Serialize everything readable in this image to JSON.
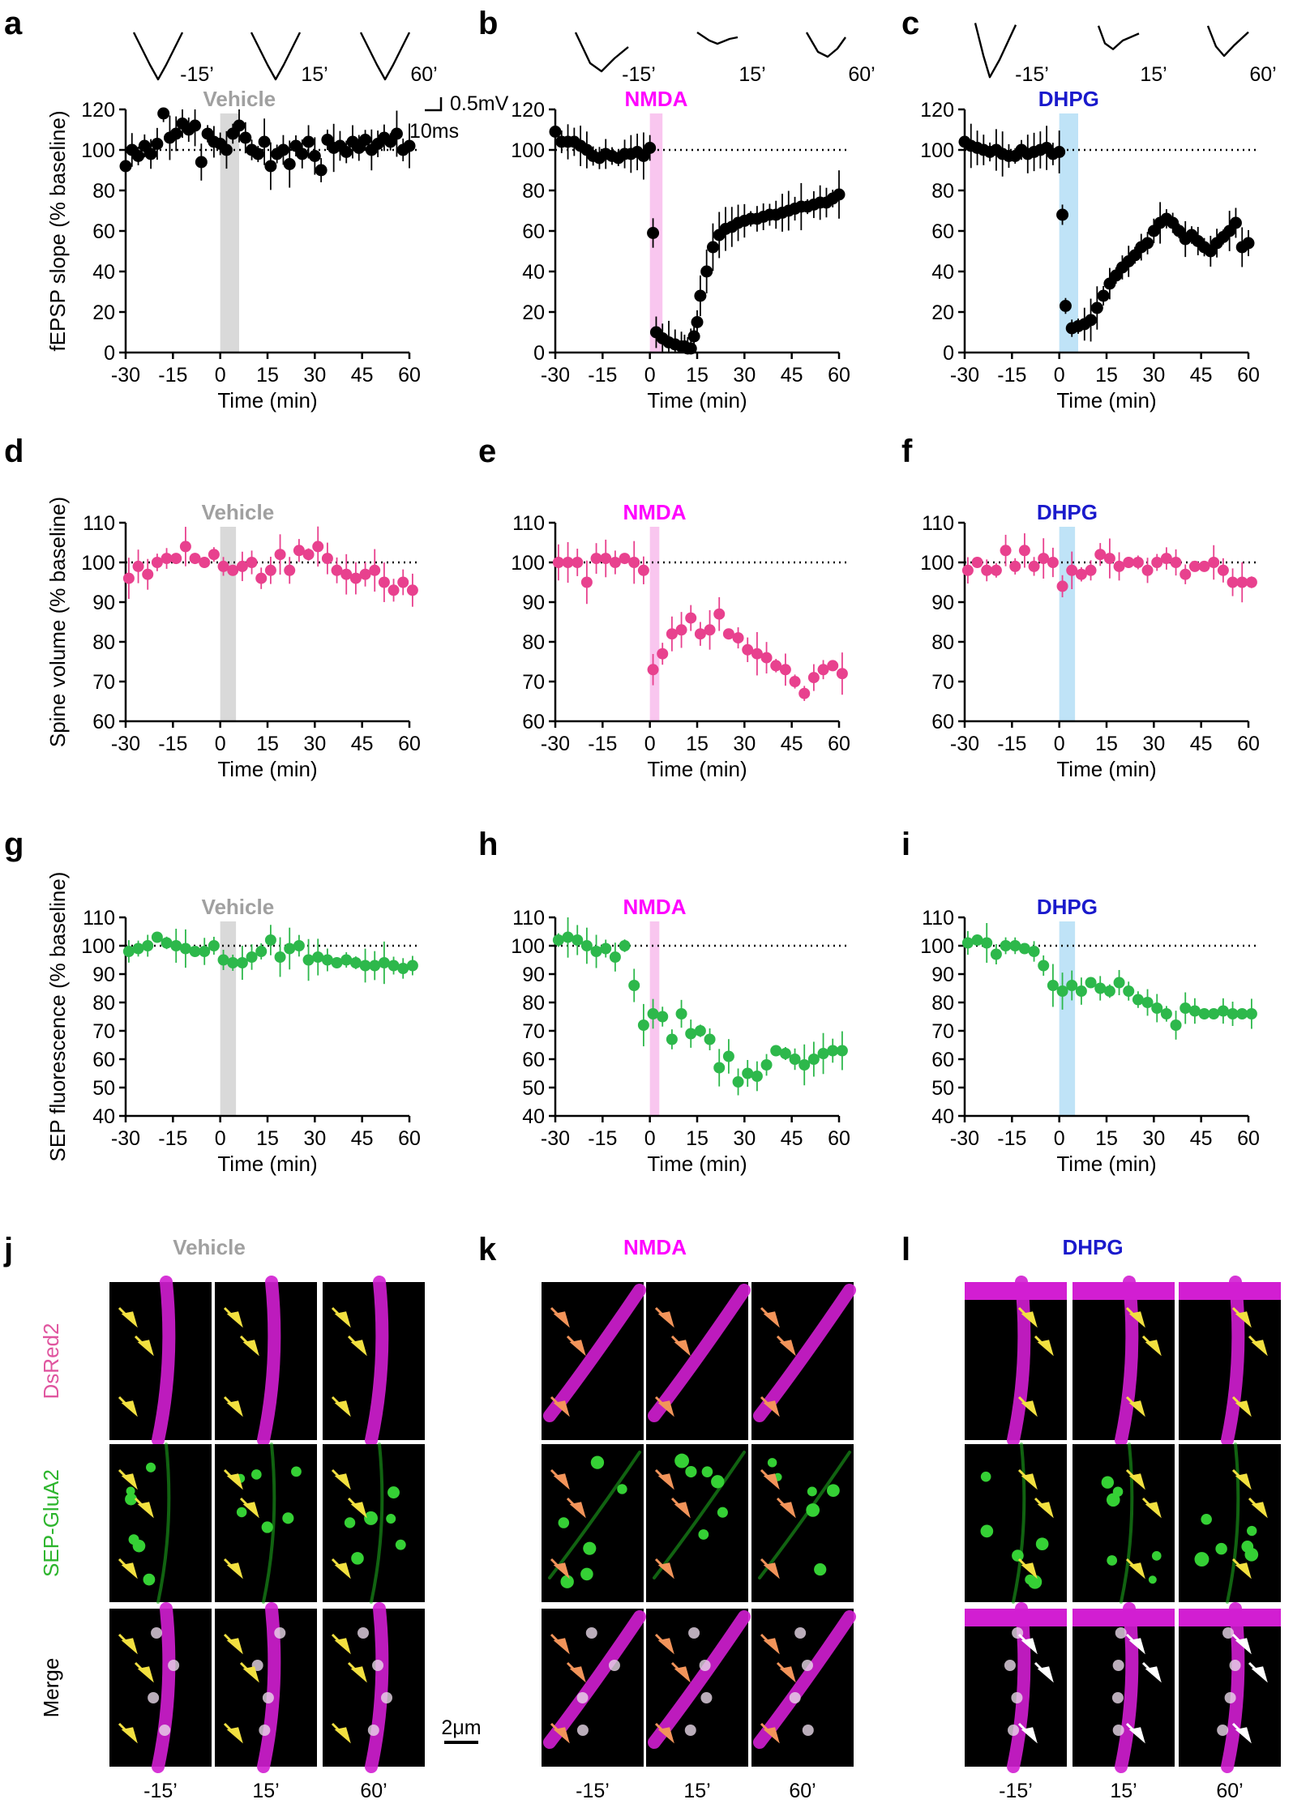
{
  "figure": {
    "panel_letters": [
      "a",
      "b",
      "c",
      "d",
      "e",
      "f",
      "g",
      "h",
      "i",
      "j",
      "k",
      "l"
    ],
    "trace_times": [
      "-15’",
      "15’",
      "60’"
    ],
    "scalebar": {
      "voltage": "0.5mV",
      "time": "10ms",
      "image": "2μm"
    },
    "x_tick_labels": [
      "-30",
      "-15",
      "0",
      "15",
      "30",
      "45",
      "60"
    ],
    "x_axis_label": "Time (min)",
    "y_label_fepsp": "fEPSP slope (% baseline)",
    "y_label_spine": "Spine volume (% baseline)",
    "y_label_sep": "SEP fluorescence (% baseline)",
    "treatments": [
      {
        "name": "Vehicle",
        "color": "#a0a0a0",
        "band": "#d9d9d9"
      },
      {
        "name": "NMDA",
        "color": "#ff00ff",
        "band": "#f9c6ef"
      },
      {
        "name": "DHPG",
        "color": "#1a1acc",
        "band": "#bfe3f7"
      }
    ],
    "image_rows": [
      {
        "label": "DsRed2",
        "color": "#e0559f"
      },
      {
        "label": "SEP-GluA2",
        "color": "#2db52d"
      },
      {
        "label": "Merge",
        "color": "#000000"
      }
    ],
    "image_times": [
      "-15’",
      "15’",
      "60’"
    ]
  },
  "chart_data": [
    {
      "panel": "a",
      "type": "scatter",
      "title": "Vehicle",
      "xlabel": "Time (min)",
      "ylabel": "fEPSP slope (% baseline)",
      "xlim": [
        -30,
        60
      ],
      "ylim": [
        0,
        120
      ],
      "yticks": [
        0,
        20,
        40,
        60,
        80,
        100,
        120
      ],
      "baseline": 100,
      "treatment_band": [
        0,
        6
      ],
      "x": [
        -30,
        -28,
        -26,
        -24,
        -22,
        -20,
        -18,
        -16,
        -14,
        -12,
        -10,
        -8,
        -6,
        -4,
        -2,
        0,
        2,
        4,
        6,
        8,
        10,
        12,
        14,
        16,
        18,
        20,
        22,
        24,
        26,
        28,
        30,
        32,
        34,
        36,
        38,
        40,
        42,
        44,
        46,
        48,
        50,
        52,
        54,
        56,
        58,
        60
      ],
      "y": [
        92,
        100,
        97,
        102,
        98,
        103,
        118,
        106,
        108,
        113,
        110,
        112,
        94,
        108,
        104,
        103,
        100,
        108,
        112,
        106,
        100,
        98,
        104,
        92,
        98,
        100,
        93,
        102,
        98,
        104,
        97,
        90,
        105,
        101,
        102,
        99,
        104,
        101,
        105,
        100,
        103,
        106,
        104,
        108,
        100,
        102
      ]
    },
    {
      "panel": "b",
      "type": "scatter",
      "title": "NMDA",
      "xlabel": "Time (min)",
      "ylabel": "",
      "xlim": [
        -30,
        60
      ],
      "ylim": [
        0,
        120
      ],
      "yticks": [
        0,
        20,
        40,
        60,
        80,
        100,
        120
      ],
      "baseline": 100,
      "treatment_band": [
        0,
        4
      ],
      "x": [
        -30,
        -28,
        -26,
        -24,
        -22,
        -20,
        -18,
        -16,
        -14,
        -12,
        -10,
        -8,
        -6,
        -4,
        -2,
        0,
        1,
        2,
        4,
        6,
        8,
        10,
        11,
        12,
        13,
        14,
        15,
        16,
        18,
        20,
        22,
        24,
        26,
        28,
        30,
        32,
        34,
        36,
        38,
        40,
        42,
        44,
        46,
        48,
        50,
        52,
        54,
        56,
        58,
        60
      ],
      "y": [
        109,
        104,
        104,
        104,
        102,
        100,
        97,
        96,
        98,
        97,
        96,
        98,
        98,
        99,
        97,
        101,
        59,
        10,
        7,
        5,
        4,
        3,
        3,
        2,
        2,
        8,
        15,
        28,
        40,
        52,
        58,
        61,
        62,
        64,
        65,
        66,
        66,
        67,
        68,
        68,
        69,
        70,
        71,
        72,
        72,
        73,
        74,
        74,
        76,
        78
      ]
    },
    {
      "panel": "c",
      "type": "scatter",
      "title": "DHPG",
      "xlabel": "Time (min)",
      "ylabel": "",
      "xlim": [
        -30,
        60
      ],
      "ylim": [
        0,
        120
      ],
      "yticks": [
        0,
        20,
        40,
        60,
        80,
        100,
        120
      ],
      "baseline": 100,
      "treatment_band": [
        0,
        6
      ],
      "x": [
        -30,
        -28,
        -26,
        -24,
        -22,
        -20,
        -18,
        -16,
        -14,
        -12,
        -10,
        -8,
        -6,
        -4,
        -2,
        0,
        1,
        2,
        4,
        6,
        8,
        10,
        12,
        14,
        16,
        18,
        20,
        22,
        24,
        26,
        28,
        30,
        32,
        34,
        36,
        38,
        40,
        42,
        44,
        46,
        48,
        50,
        52,
        54,
        56,
        58,
        60
      ],
      "y": [
        104,
        102,
        101,
        100,
        99,
        100,
        98,
        97,
        97,
        100,
        98,
        99,
        100,
        101,
        98,
        99,
        68,
        23,
        12,
        13,
        14,
        16,
        22,
        28,
        34,
        38,
        42,
        45,
        48,
        52,
        54,
        60,
        64,
        66,
        64,
        60,
        56,
        58,
        55,
        52,
        50,
        54,
        57,
        60,
        64,
        52,
        54
      ]
    },
    {
      "panel": "d",
      "type": "scatter",
      "title": "Vehicle",
      "xlabel": "Time (min)",
      "ylabel": "Spine volume (% baseline)",
      "xlim": [
        -30,
        60
      ],
      "ylim": [
        60,
        110
      ],
      "yticks": [
        60,
        70,
        80,
        90,
        100,
        110
      ],
      "baseline": 100,
      "treatment_band": [
        0,
        5
      ],
      "x": [
        -29,
        -26,
        -23,
        -20,
        -17,
        -14,
        -11,
        -8,
        -5,
        -2,
        1,
        4,
        7,
        10,
        13,
        16,
        19,
        22,
        25,
        28,
        31,
        34,
        37,
        40,
        43,
        46,
        49,
        52,
        55,
        58,
        61
      ],
      "y": [
        96,
        99,
        97,
        100,
        101,
        101,
        104,
        101,
        100,
        102,
        99,
        98,
        99,
        100,
        96,
        98,
        102,
        98,
        103,
        102,
        104,
        101,
        98,
        97,
        96,
        97,
        98,
        95,
        93,
        95,
        93
      ]
    },
    {
      "panel": "e",
      "type": "scatter",
      "title": "NMDA",
      "xlabel": "Time (min)",
      "ylabel": "",
      "xlim": [
        -30,
        60
      ],
      "ylim": [
        60,
        110
      ],
      "yticks": [
        60,
        70,
        80,
        90,
        100,
        110
      ],
      "baseline": 100,
      "treatment_band": [
        0,
        3
      ],
      "x": [
        -29,
        -26,
        -23,
        -20,
        -17,
        -14,
        -11,
        -8,
        -5,
        -2,
        1,
        4,
        7,
        10,
        13,
        16,
        19,
        22,
        25,
        28,
        31,
        34,
        37,
        40,
        43,
        46,
        49,
        52,
        55,
        58,
        61
      ],
      "y": [
        100,
        100,
        100,
        95,
        101,
        101,
        100,
        101,
        100,
        98,
        73,
        77,
        82,
        83,
        86,
        82,
        83,
        87,
        82,
        81,
        78,
        77,
        76,
        74,
        73,
        70,
        67,
        71,
        73,
        74,
        72
      ]
    },
    {
      "panel": "f",
      "type": "scatter",
      "title": "DHPG",
      "xlabel": "Time (min)",
      "ylabel": "",
      "xlim": [
        -30,
        60
      ],
      "ylim": [
        60,
        110
      ],
      "yticks": [
        60,
        70,
        80,
        90,
        100,
        110
      ],
      "baseline": 100,
      "treatment_band": [
        0,
        5
      ],
      "x": [
        -29,
        -26,
        -23,
        -20,
        -17,
        -14,
        -11,
        -8,
        -5,
        -2,
        1,
        4,
        7,
        10,
        13,
        16,
        19,
        22,
        25,
        28,
        31,
        34,
        37,
        40,
        43,
        46,
        49,
        52,
        55,
        58,
        61
      ],
      "y": [
        98,
        100,
        98,
        98,
        103,
        99,
        103,
        99,
        101,
        100,
        94,
        98,
        97,
        98,
        102,
        101,
        99,
        100,
        100,
        98,
        100,
        101,
        100,
        97,
        99,
        99,
        100,
        98,
        95,
        95,
        95
      ]
    },
    {
      "panel": "g",
      "type": "scatter",
      "title": "Vehicle",
      "xlabel": "Time (min)",
      "ylabel": "SEP fluorescence (% baseline)",
      "xlim": [
        -30,
        60
      ],
      "ylim": [
        40,
        110
      ],
      "yticks": [
        40,
        50,
        60,
        70,
        80,
        90,
        100,
        110
      ],
      "baseline": 100,
      "treatment_band": [
        0,
        5
      ],
      "x": [
        -29,
        -26,
        -23,
        -20,
        -17,
        -14,
        -11,
        -8,
        -5,
        -2,
        1,
        4,
        7,
        10,
        13,
        16,
        19,
        22,
        25,
        28,
        31,
        34,
        37,
        40,
        43,
        46,
        49,
        52,
        55,
        58,
        61
      ],
      "y": [
        98,
        99,
        100,
        103,
        101,
        100,
        99,
        98,
        98,
        100,
        95,
        94,
        94,
        96,
        98,
        102,
        96,
        99,
        100,
        95,
        96,
        95,
        94,
        95,
        94,
        93,
        93,
        94,
        93,
        92,
        93
      ]
    },
    {
      "panel": "h",
      "type": "scatter",
      "title": "NMDA",
      "xlabel": "Time (min)",
      "ylabel": "",
      "xlim": [
        -30,
        60
      ],
      "ylim": [
        40,
        110
      ],
      "yticks": [
        40,
        50,
        60,
        70,
        80,
        90,
        100,
        110
      ],
      "baseline": 100,
      "treatment_band": [
        0,
        3
      ],
      "x": [
        -29,
        -26,
        -23,
        -20,
        -17,
        -14,
        -11,
        -8,
        -5,
        -2,
        1,
        4,
        7,
        10,
        13,
        16,
        19,
        22,
        25,
        28,
        31,
        34,
        37,
        40,
        43,
        46,
        49,
        52,
        55,
        58,
        61
      ],
      "y": [
        102,
        103,
        102,
        100,
        98,
        99,
        96,
        100,
        86,
        72,
        76,
        75,
        67,
        76,
        69,
        70,
        67,
        57,
        61,
        52,
        55,
        54,
        58,
        63,
        62,
        60,
        58,
        60,
        62,
        63,
        63
      ]
    },
    {
      "panel": "i",
      "type": "scatter",
      "title": "DHPG",
      "xlabel": "Time (min)",
      "ylabel": "",
      "xlim": [
        -30,
        60
      ],
      "ylim": [
        40,
        110
      ],
      "yticks": [
        40,
        50,
        60,
        70,
        80,
        90,
        100,
        110
      ],
      "baseline": 100,
      "treatment_band": [
        0,
        5
      ],
      "x": [
        -29,
        -26,
        -23,
        -20,
        -17,
        -14,
        -11,
        -8,
        -5,
        -2,
        1,
        4,
        7,
        10,
        13,
        16,
        19,
        22,
        25,
        28,
        31,
        34,
        37,
        40,
        43,
        46,
        49,
        52,
        55,
        58,
        61
      ],
      "y": [
        101,
        102,
        101,
        97,
        100,
        100,
        99,
        98,
        93,
        86,
        84,
        86,
        84,
        87,
        85,
        84,
        87,
        84,
        81,
        80,
        78,
        76,
        72,
        78,
        77,
        76,
        76,
        77,
        76,
        76,
        76
      ]
    }
  ]
}
